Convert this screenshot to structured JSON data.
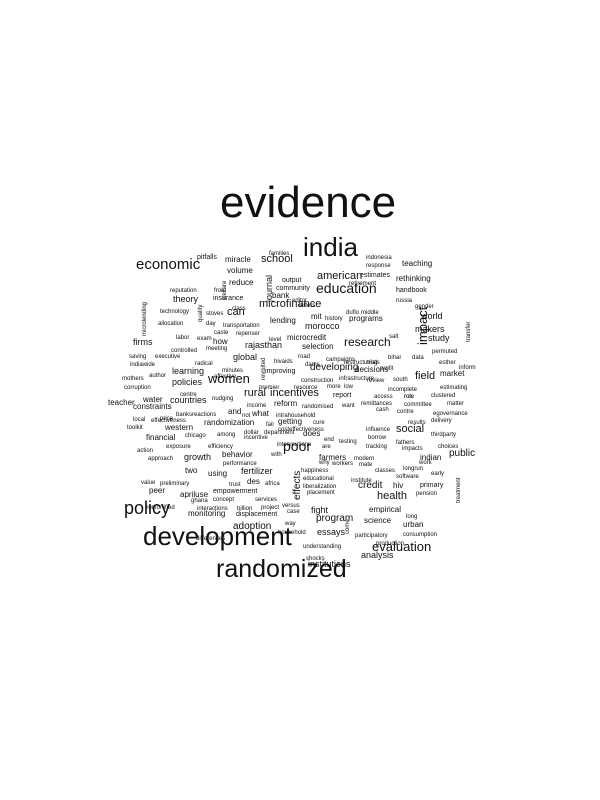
{
  "words": [
    "evidence",
    "india",
    "development",
    "randomized",
    "policy",
    "economic",
    "education",
    "evaluation",
    "research",
    "poor",
    "impact",
    "health",
    "women",
    "school",
    "american",
    "rural",
    "incentives",
    "social",
    "program",
    "field",
    "microfinance",
    "can",
    "global",
    "rajasthan",
    "developing",
    "learning",
    "countries",
    "effects",
    "credit",
    "public",
    "adoption",
    "growth",
    "fertilizer",
    "behavior",
    "fight",
    "essays",
    "analysis",
    "institutions",
    "theory",
    "policies",
    "firms",
    "world",
    "makers",
    "study",
    "market",
    "reform",
    "morocco",
    "selection",
    "decisions",
    "lending",
    "programs",
    "microcredit",
    "journal",
    "mit",
    "reduce",
    "miracle",
    "volume",
    "teaching",
    "estimates",
    "rethinking",
    "handbook",
    "indonesia",
    "response",
    "families",
    "pitfalls",
    "reputation",
    "technology",
    "allocation",
    "stoves",
    "insurance",
    "bank",
    "output",
    "community",
    "editor",
    "class",
    "water",
    "financial",
    "two",
    "using",
    "des",
    "randomization",
    "western",
    "constraints",
    "teacher",
    "peer",
    "apriluse",
    "monitoring",
    "empowerment",
    "displacement",
    "science",
    "urban",
    "hiv",
    "empirical",
    "indian",
    "work",
    "primary",
    "long",
    "modern",
    "cash",
    "borrow",
    "influence",
    "report",
    "farmers",
    "getting",
    "improving",
    "minutes",
    "nudging",
    "income",
    "africa",
    "trust",
    "project",
    "case",
    "way",
    "household",
    "understanding",
    "shocks",
    "participatory",
    "production",
    "consumption",
    "treatment",
    "placement",
    "educational",
    "liberalization",
    "happiness",
    "classes",
    "software",
    "pension",
    "early",
    "longrun",
    "thirdparty",
    "choices",
    "fathers",
    "impacts",
    "tracking",
    "testing",
    "review",
    "south",
    "access",
    "role",
    "clustered",
    "estimating",
    "matter",
    "delivery",
    "committee",
    "results",
    "egovernance",
    "esther",
    "inform",
    "transfer",
    "permuted",
    "salt",
    "duflo",
    "middle",
    "retirement",
    "gender",
    "russia",
    "labor",
    "author",
    "mothers",
    "corruption",
    "saving",
    "executive",
    "indiawide",
    "price",
    "preliminary",
    "value",
    "toolkit",
    "local",
    "effectiveness",
    "action",
    "approach",
    "exposure",
    "efficiency",
    "performance",
    "interactions",
    "differences",
    "billion",
    "concept",
    "ghana",
    "ironfortified",
    "services",
    "versus",
    "chicago",
    "among",
    "dollar",
    "department",
    "interventions",
    "why",
    "workers",
    "institute",
    "caste",
    "day",
    "quality",
    "repenser",
    "transportation",
    "controlled",
    "meeting",
    "radical",
    "effective",
    "centre",
    "banksreactions",
    "fail",
    "intrahousehold",
    "costeffectiveness",
    "randomised",
    "want",
    "remittances",
    "incomplete",
    "contre",
    "profit",
    "bihar",
    "data",
    "trials",
    "campaigns",
    "construction",
    "more",
    "low",
    "resource",
    "restructuring",
    "infrastructure",
    "dams",
    "road",
    "hivaids",
    "premier",
    "how",
    "and",
    "what",
    "not",
    "letters",
    "does",
    "end",
    "are",
    "with",
    "cure",
    "from",
    "revisited",
    "mate",
    "come",
    "role",
    "level",
    "history",
    "microlending",
    "welfare",
    "exam",
    "incentive"
  ],
  "colors": {
    "ink": "#111111",
    "background": "#ffffff"
  }
}
